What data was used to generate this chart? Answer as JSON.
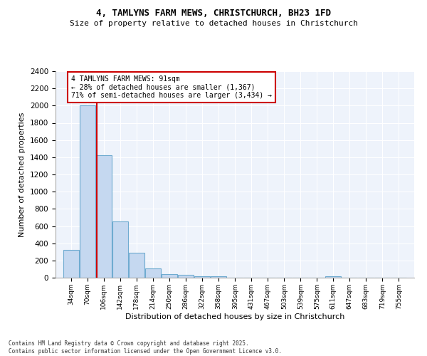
{
  "title1": "4, TAMLYNS FARM MEWS, CHRISTCHURCH, BH23 1FD",
  "title2": "Size of property relative to detached houses in Christchurch",
  "xlabel": "Distribution of detached houses by size in Christchurch",
  "ylabel": "Number of detached properties",
  "footnote1": "Contains HM Land Registry data © Crown copyright and database right 2025.",
  "footnote2": "Contains public sector information licensed under the Open Government Licence v3.0.",
  "annotation_line1": "4 TAMLYNS FARM MEWS: 91sqm",
  "annotation_line2": "← 28% of detached houses are smaller (1,367)",
  "annotation_line3": "71% of semi-detached houses are larger (3,434) →",
  "property_size": 91,
  "bins": [
    34,
    70,
    106,
    142,
    178,
    214,
    250,
    286,
    322,
    358,
    395,
    431,
    467,
    503,
    539,
    575,
    611,
    647,
    683,
    719,
    755
  ],
  "bar_heights": [
    320,
    2000,
    1420,
    650,
    290,
    105,
    45,
    30,
    20,
    15,
    0,
    0,
    0,
    0,
    0,
    0,
    15,
    0,
    0,
    0,
    0
  ],
  "bar_color": "#c5d8f0",
  "bar_edge_color": "#6fabd0",
  "vline_color": "#cc0000",
  "annotation_box_color": "#cc0000",
  "bg_color": "#eef3fb",
  "grid_color": "#ffffff",
  "ylim": [
    0,
    2400
  ],
  "yticks": [
    0,
    200,
    400,
    600,
    800,
    1000,
    1200,
    1400,
    1600,
    1800,
    2000,
    2200,
    2400
  ]
}
